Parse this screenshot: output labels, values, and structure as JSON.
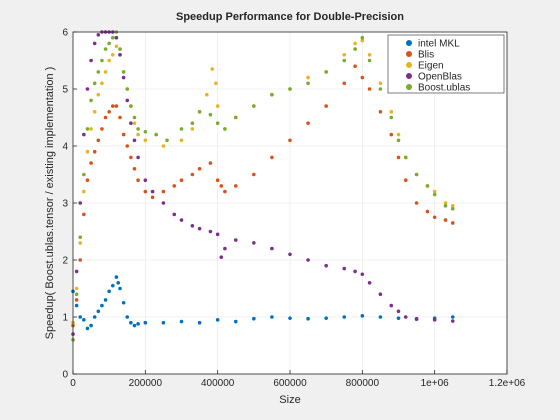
{
  "chart_data": {
    "type": "scatter",
    "title": "Speedup Performance for Double-Precision",
    "xlabel": "Size",
    "ylabel": "Speedup( Boost.ublas.tensor / existing implementation  )",
    "xlim": [
      0,
      1200000
    ],
    "ylim": [
      0,
      6
    ],
    "x_ticks": [
      0,
      200000,
      400000,
      600000,
      800000,
      1000000,
      1200000
    ],
    "x_tick_labels": [
      "0",
      "200000",
      "400000",
      "600000",
      "800000",
      "1e+06",
      "1.2e+06"
    ],
    "y_ticks": [
      0,
      1,
      2,
      3,
      4,
      5,
      6
    ],
    "y_tick_labels": [
      "0",
      "1",
      "2",
      "3",
      "4",
      "5",
      "6"
    ],
    "grid": true,
    "legend_position": "top-right",
    "series": [
      {
        "name": "intel MKL",
        "color": "#0072bd",
        "points": [
          [
            0,
            1.45
          ],
          [
            10000,
            1.2
          ],
          [
            20000,
            1.0
          ],
          [
            30000,
            0.95
          ],
          [
            40000,
            0.8
          ],
          [
            50000,
            0.85
          ],
          [
            60000,
            1.0
          ],
          [
            70000,
            1.1
          ],
          [
            80000,
            1.2
          ],
          [
            90000,
            1.3
          ],
          [
            100000,
            1.45
          ],
          [
            110000,
            1.55
          ],
          [
            120000,
            1.7
          ],
          [
            125000,
            1.6
          ],
          [
            130000,
            1.5
          ],
          [
            140000,
            1.25
          ],
          [
            150000,
            1.0
          ],
          [
            160000,
            0.9
          ],
          [
            170000,
            0.85
          ],
          [
            180000,
            0.88
          ],
          [
            200000,
            0.9
          ],
          [
            250000,
            0.9
          ],
          [
            300000,
            0.92
          ],
          [
            350000,
            0.9
          ],
          [
            400000,
            0.95
          ],
          [
            450000,
            0.92
          ],
          [
            500000,
            0.97
          ],
          [
            550000,
            1.0
          ],
          [
            600000,
            0.98
          ],
          [
            650000,
            0.97
          ],
          [
            700000,
            0.98
          ],
          [
            750000,
            1.0
          ],
          [
            800000,
            1.02
          ],
          [
            850000,
            1.0
          ],
          [
            900000,
            0.98
          ],
          [
            950000,
            0.96
          ],
          [
            1000000,
            0.98
          ],
          [
            1050000,
            1.0
          ]
        ]
      },
      {
        "name": "Blis",
        "color": "#d95319",
        "points": [
          [
            0,
            0.85
          ],
          [
            10000,
            1.3
          ],
          [
            20000,
            2.0
          ],
          [
            30000,
            2.8
          ],
          [
            40000,
            3.4
          ],
          [
            50000,
            3.7
          ],
          [
            60000,
            3.9
          ],
          [
            70000,
            4.1
          ],
          [
            80000,
            4.3
          ],
          [
            90000,
            4.5
          ],
          [
            100000,
            4.6
          ],
          [
            110000,
            4.7
          ],
          [
            120000,
            4.7
          ],
          [
            130000,
            4.5
          ],
          [
            140000,
            4.2
          ],
          [
            150000,
            4.0
          ],
          [
            160000,
            3.8
          ],
          [
            170000,
            3.6
          ],
          [
            180000,
            3.4
          ],
          [
            200000,
            3.2
          ],
          [
            220000,
            3.1
          ],
          [
            250000,
            3.2
          ],
          [
            280000,
            3.3
          ],
          [
            300000,
            3.4
          ],
          [
            330000,
            3.5
          ],
          [
            350000,
            3.6
          ],
          [
            380000,
            3.7
          ],
          [
            400000,
            3.4
          ],
          [
            410000,
            3.3
          ],
          [
            420000,
            3.2
          ],
          [
            450000,
            3.3
          ],
          [
            500000,
            3.5
          ],
          [
            550000,
            3.8
          ],
          [
            600000,
            4.1
          ],
          [
            650000,
            4.4
          ],
          [
            700000,
            4.7
          ],
          [
            750000,
            5.1
          ],
          [
            780000,
            5.4
          ],
          [
            800000,
            5.2
          ],
          [
            820000,
            5.0
          ],
          [
            850000,
            4.6
          ],
          [
            880000,
            4.2
          ],
          [
            900000,
            3.8
          ],
          [
            920000,
            3.4
          ],
          [
            950000,
            3.0
          ],
          [
            980000,
            2.85
          ],
          [
            1000000,
            2.75
          ],
          [
            1030000,
            2.7
          ],
          [
            1050000,
            2.65
          ]
        ]
      },
      {
        "name": "Eigen",
        "color": "#edb120",
        "points": [
          [
            0,
            0.9
          ],
          [
            10000,
            1.5
          ],
          [
            20000,
            2.3
          ],
          [
            30000,
            3.2
          ],
          [
            40000,
            3.9
          ],
          [
            50000,
            4.3
          ],
          [
            60000,
            4.6
          ],
          [
            70000,
            4.9
          ],
          [
            80000,
            5.1
          ],
          [
            90000,
            5.3
          ],
          [
            100000,
            5.5
          ],
          [
            110000,
            5.6
          ],
          [
            120000,
            5.75
          ],
          [
            130000,
            5.6
          ],
          [
            140000,
            5.3
          ],
          [
            150000,
            5.0
          ],
          [
            160000,
            4.7
          ],
          [
            170000,
            4.4
          ],
          [
            180000,
            4.2
          ],
          [
            200000,
            4.1
          ],
          [
            250000,
            4.0
          ],
          [
            300000,
            4.1
          ],
          [
            330000,
            4.3
          ],
          [
            350000,
            4.6
          ],
          [
            370000,
            4.9
          ],
          [
            385000,
            5.35
          ],
          [
            395000,
            5.1
          ],
          [
            400000,
            4.7
          ],
          [
            420000,
            4.3
          ],
          [
            450000,
            4.5
          ],
          [
            500000,
            4.7
          ],
          [
            550000,
            4.9
          ],
          [
            600000,
            5.0
          ],
          [
            650000,
            5.2
          ],
          [
            700000,
            5.3
          ],
          [
            750000,
            5.6
          ],
          [
            780000,
            5.8
          ],
          [
            800000,
            5.85
          ],
          [
            820000,
            5.6
          ],
          [
            850000,
            5.1
          ],
          [
            880000,
            4.6
          ],
          [
            900000,
            4.2
          ],
          [
            920000,
            3.8
          ],
          [
            950000,
            3.5
          ],
          [
            980000,
            3.3
          ],
          [
            1000000,
            3.2
          ],
          [
            1030000,
            3.0
          ],
          [
            1050000,
            2.95
          ]
        ]
      },
      {
        "name": "OpenBlas",
        "color": "#7e2f8e",
        "points": [
          [
            0,
            0.7
          ],
          [
            10000,
            1.8
          ],
          [
            20000,
            3.0
          ],
          [
            30000,
            4.2
          ],
          [
            40000,
            5.0
          ],
          [
            50000,
            5.5
          ],
          [
            60000,
            5.8
          ],
          [
            70000,
            5.95
          ],
          [
            80000,
            6.0
          ],
          [
            90000,
            6.0
          ],
          [
            100000,
            6.0
          ],
          [
            110000,
            6.0
          ],
          [
            120000,
            5.9
          ],
          [
            130000,
            5.6
          ],
          [
            140000,
            5.2
          ],
          [
            150000,
            4.8
          ],
          [
            160000,
            4.4
          ],
          [
            170000,
            4.1
          ],
          [
            180000,
            3.8
          ],
          [
            200000,
            3.4
          ],
          [
            220000,
            3.2
          ],
          [
            250000,
            3.0
          ],
          [
            280000,
            2.8
          ],
          [
            300000,
            2.7
          ],
          [
            330000,
            2.6
          ],
          [
            350000,
            2.55
          ],
          [
            380000,
            2.5
          ],
          [
            400000,
            2.45
          ],
          [
            410000,
            2.05
          ],
          [
            420000,
            2.2
          ],
          [
            450000,
            2.35
          ],
          [
            500000,
            2.3
          ],
          [
            550000,
            2.2
          ],
          [
            600000,
            2.1
          ],
          [
            650000,
            2.0
          ],
          [
            700000,
            1.9
          ],
          [
            750000,
            1.85
          ],
          [
            780000,
            1.8
          ],
          [
            800000,
            1.75
          ],
          [
            820000,
            1.6
          ],
          [
            850000,
            1.4
          ],
          [
            880000,
            1.2
          ],
          [
            900000,
            1.1
          ],
          [
            920000,
            1.0
          ],
          [
            950000,
            0.97
          ],
          [
            1000000,
            0.95
          ],
          [
            1050000,
            0.93
          ]
        ]
      },
      {
        "name": "Boost.ublas",
        "color": "#77ac30",
        "points": [
          [
            0,
            0.6
          ],
          [
            10000,
            1.4
          ],
          [
            20000,
            2.4
          ],
          [
            30000,
            3.5
          ],
          [
            40000,
            4.3
          ],
          [
            50000,
            4.8
          ],
          [
            60000,
            5.1
          ],
          [
            70000,
            5.3
          ],
          [
            80000,
            5.5
          ],
          [
            90000,
            5.7
          ],
          [
            100000,
            5.8
          ],
          [
            110000,
            5.9
          ],
          [
            120000,
            6.0
          ],
          [
            130000,
            5.7
          ],
          [
            140000,
            5.3
          ],
          [
            150000,
            5.0
          ],
          [
            160000,
            4.7
          ],
          [
            170000,
            4.5
          ],
          [
            180000,
            4.3
          ],
          [
            200000,
            4.25
          ],
          [
            230000,
            4.2
          ],
          [
            260000,
            4.1
          ],
          [
            300000,
            4.3
          ],
          [
            330000,
            4.4
          ],
          [
            350000,
            4.6
          ],
          [
            380000,
            4.55
          ],
          [
            400000,
            4.4
          ],
          [
            420000,
            4.3
          ],
          [
            450000,
            4.5
          ],
          [
            500000,
            4.7
          ],
          [
            550000,
            4.9
          ],
          [
            600000,
            5.0
          ],
          [
            650000,
            5.1
          ],
          [
            700000,
            5.3
          ],
          [
            750000,
            5.5
          ],
          [
            780000,
            5.7
          ],
          [
            800000,
            5.9
          ],
          [
            820000,
            5.5
          ],
          [
            850000,
            5.0
          ],
          [
            880000,
            4.5
          ],
          [
            900000,
            4.1
          ],
          [
            920000,
            3.8
          ],
          [
            950000,
            3.5
          ],
          [
            980000,
            3.3
          ],
          [
            1000000,
            3.15
          ],
          [
            1030000,
            2.95
          ],
          [
            1050000,
            2.9
          ]
        ]
      }
    ]
  }
}
